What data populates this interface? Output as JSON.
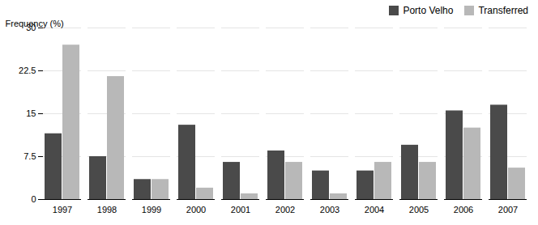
{
  "chart_data": {
    "type": "bar",
    "categories": [
      "1997",
      "1998",
      "1999",
      "2000",
      "2001",
      "2002",
      "2003",
      "2004",
      "2005",
      "2006",
      "2007"
    ],
    "series": [
      {
        "name": "Porto Velho",
        "color": "#4a4a4a",
        "values": [
          11.5,
          7.5,
          3.5,
          13.0,
          6.5,
          8.5,
          5.0,
          5.0,
          9.5,
          15.5,
          16.5
        ]
      },
      {
        "name": "Transferred",
        "color": "#b8b8b8",
        "values": [
          27.0,
          21.5,
          3.5,
          2.0,
          1.0,
          6.5,
          1.0,
          6.5,
          6.5,
          12.5,
          5.5
        ]
      }
    ],
    "ylabel": "Frequency (%)",
    "ylim": [
      0,
      30
    ],
    "yticks": [
      0,
      7.5,
      15,
      22.5,
      30
    ],
    "grid": true,
    "legend": "upper right"
  }
}
